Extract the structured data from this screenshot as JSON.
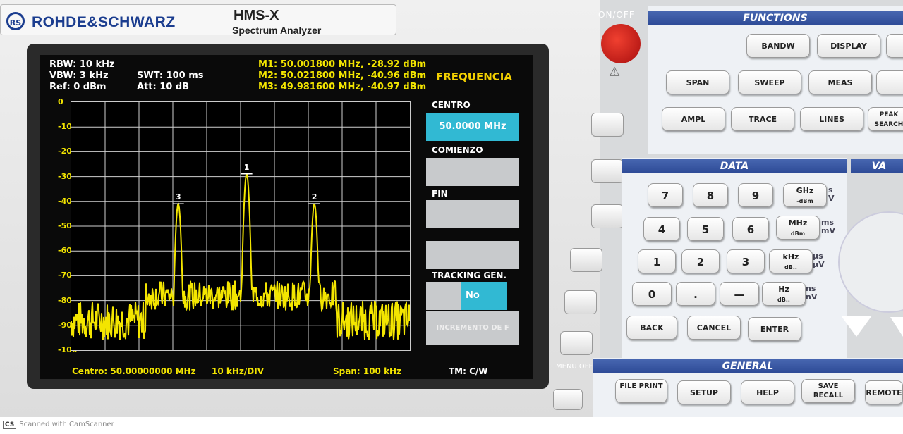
{
  "brand": {
    "name": "ROHDE&SCHWARZ",
    "model": "HMS-X",
    "model_sub": "Spectrum Analyzer"
  },
  "readouts": {
    "rbw": "RBW: 10 kHz",
    "vbw": "VBW: 3 kHz",
    "ref": "Ref: 0 dBm",
    "swt": "SWT: 100 ms",
    "att": "Att: 10 dB"
  },
  "markers": [
    {
      "label": "M1: 50.001800 MHz, -28.92 dBm",
      "id": "1",
      "freq_mhz": 50.0018,
      "level_dbm": -28.92
    },
    {
      "label": "M2: 50.021800 MHz, -40.96 dBm",
      "id": "2",
      "freq_mhz": 50.0218,
      "level_dbm": -40.96
    },
    {
      "label": "M3: 49.981600 MHz, -40.97 dBm",
      "id": "3",
      "freq_mhz": 49.9816,
      "level_dbm": -40.97
    }
  ],
  "chart_data": {
    "type": "line",
    "title": "",
    "xlabel": "",
    "ylabel": "",
    "x_range_khz": [
      -50,
      50
    ],
    "ylim": [
      -100,
      0
    ],
    "y_ticks": [
      "0",
      "-10",
      "-20",
      "-30",
      "-40",
      "-50",
      "-60",
      "-70",
      "-80",
      "-90",
      "-100"
    ],
    "grid": true,
    "series": [
      {
        "name": "trace",
        "peaks": [
          {
            "x_khz": 1.8,
            "y_dbm": -28.92
          },
          {
            "x_khz": 21.8,
            "y_dbm": -40.96
          },
          {
            "x_khz": -18.4,
            "y_dbm": -40.97
          }
        ],
        "noise_floor_dbm": -88
      }
    ]
  },
  "bottom": {
    "center": "Centro: 50.00000000 MHz",
    "div": "10 kHz/DIV",
    "span": "Span: 100 kHz",
    "tm": "TM: C/W"
  },
  "menu": {
    "title": "FREQUENCIA",
    "centro_label": "CENTRO",
    "centro_value": "50.0000 MHz",
    "comienzo_label": "COMIENZO",
    "fin_label": "FIN",
    "tracking_label": "TRACKING GEN.",
    "tracking_value": "No",
    "incremento": "INCREMENTO DE F"
  },
  "power_label": "ON/OFF",
  "menu_off_label": "MENU OFF",
  "functions": {
    "header": "FUNCTIONS",
    "keys": [
      "BANDW",
      "DISPLAY",
      "SPAN",
      "SWEEP",
      "MEAS",
      "AMPL",
      "TRACE",
      "LINES",
      "PEAK SEARCH"
    ]
  },
  "data_panel": {
    "header": "DATA",
    "digits": [
      "7",
      "8",
      "9",
      "4",
      "5",
      "6",
      "1",
      "2",
      "3",
      "0",
      ".",
      "—"
    ],
    "units": [
      {
        "main": "GHz",
        "sub": "-dBm",
        "side": "s V"
      },
      {
        "main": "MHz",
        "sub": "dBm",
        "side": "ms mV"
      },
      {
        "main": "kHz",
        "sub": "dB..",
        "side": "µs µV"
      },
      {
        "main": "Hz",
        "sub": "dB..",
        "side": "ns nV"
      }
    ],
    "back": "BACK",
    "cancel": "CANCEL",
    "enter": "ENTER"
  },
  "variation_header": "VA",
  "general": {
    "header": "GENERAL",
    "keys": [
      "FILE PRINT",
      "SETUP",
      "HELP",
      "SAVE RECALL",
      "REMOTE"
    ]
  },
  "watermark": "Scanned with CamScanner"
}
